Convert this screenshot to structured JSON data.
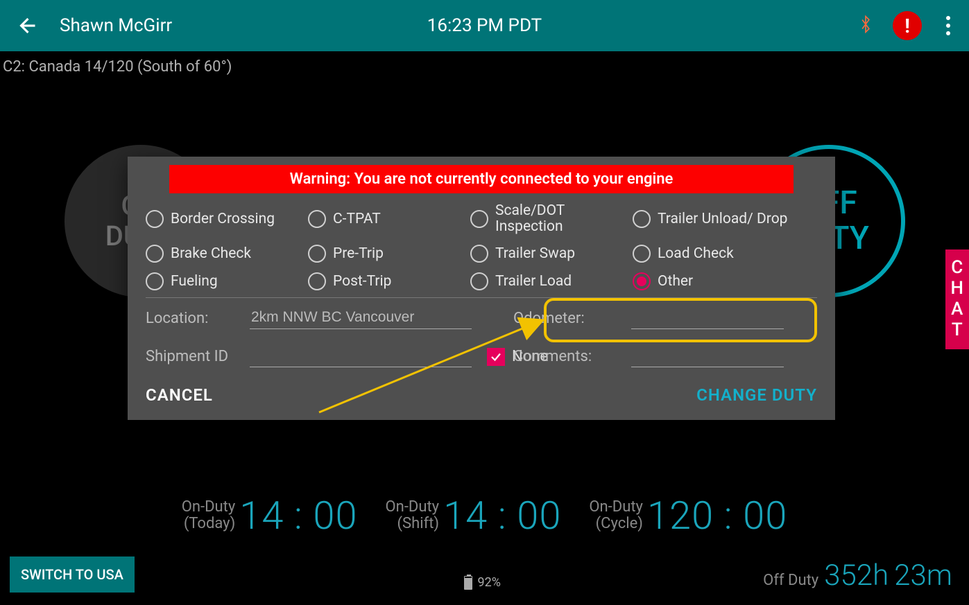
{
  "header": {
    "user_name": "Shawn McGirr",
    "time": "16:23 PM PDT",
    "bluetooth_color": "#ff6a3d",
    "alert_glyph": "!",
    "alert_bg": "#e00000"
  },
  "cycle_text": "C2: Canada 14/120 (South of 60°)",
  "circles": {
    "on_duty": "ON\nDUTY",
    "off_duty": "OFF\nDUTY"
  },
  "modal": {
    "warning": "Warning: You are not currently connected to your engine",
    "options": [
      {
        "label": "Border Crossing",
        "col": 1
      },
      {
        "label": "C-TPAT",
        "col": 2
      },
      {
        "label": "Scale/DOT Inspection",
        "col": 3
      },
      {
        "label": "Trailer Unload/ Drop",
        "col": 4
      },
      {
        "label": "Brake Check",
        "col": 1
      },
      {
        "label": "Pre-Trip",
        "col": 2
      },
      {
        "label": "Trailer Swap",
        "col": 3
      },
      {
        "label": "Load Check",
        "col": 4
      },
      {
        "label": "Fueling",
        "col": 1
      },
      {
        "label": "Post-Trip",
        "col": 2
      },
      {
        "label": "Trailer Load",
        "col": 3
      },
      {
        "label": "Other",
        "col": 4,
        "selected": true
      }
    ],
    "location_label": "Location:",
    "location_value": "2km NNW BC Vancouver",
    "odometer_label": "Odometer:",
    "odometer_value": "",
    "shipment_label": "Shipment ID",
    "shipment_value": "",
    "none_label": "None",
    "none_checked": true,
    "comments_label": "Comments:",
    "comments_value": "",
    "cancel": "CANCEL",
    "change_duty": "CHANGE DUTY"
  },
  "timers": [
    {
      "label1": "On-Duty",
      "label2": "(Today)",
      "value": "14 : 00"
    },
    {
      "label1": "On-Duty",
      "label2": "(Shift)",
      "value": "14 : 00"
    },
    {
      "label1": "On-Duty",
      "label2": "(Cycle)",
      "value": "120 : 00"
    }
  ],
  "switch_btn": "SWITCH TO USA",
  "battery_pct": "92%",
  "offduty": {
    "label": "Off Duty",
    "hours": "352h",
    "mins": "23m"
  },
  "chat_tab": "CHAT",
  "colors": {
    "accent_teal": "#007477",
    "accent_cyan": "#13b0cb",
    "accent_pink": "#e6005c",
    "highlight_yellow": "#f2c200",
    "warning_red": "#fd0000"
  }
}
